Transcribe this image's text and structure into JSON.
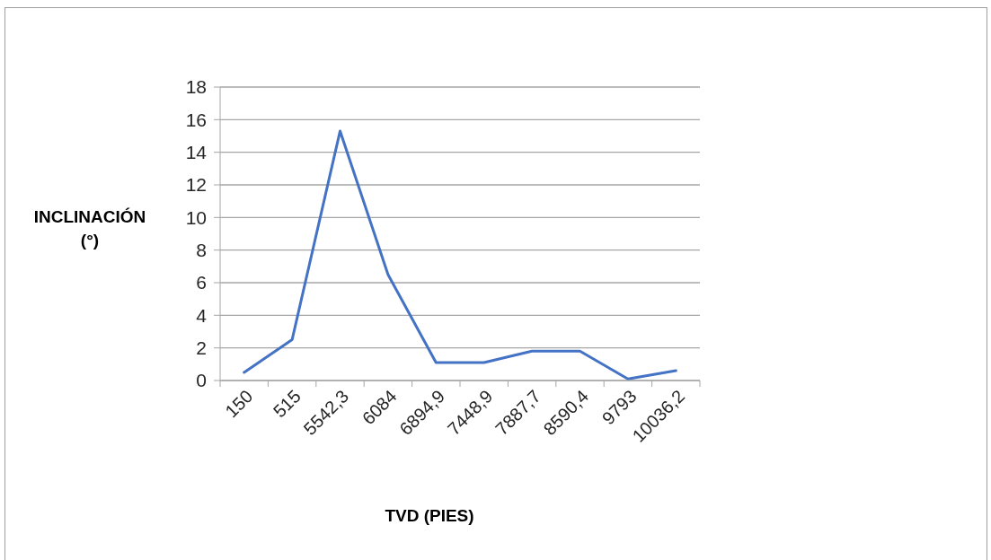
{
  "chart_data": {
    "type": "line",
    "xlabel": "TVD (PIES)",
    "ylabel": "INCLINACIÓN (°)",
    "categories": [
      "150",
      "515",
      "5542,3",
      "6084",
      "6894,9",
      "7448,9",
      "7887,7",
      "8590,4",
      "9793",
      "10036,2"
    ],
    "series": [
      {
        "color": "#4472c4",
        "values": [
          0.5,
          2.5,
          15.3,
          6.5,
          1.1,
          1.1,
          1.8,
          1.8,
          0.1,
          0.6
        ]
      }
    ],
    "ylim": [
      0,
      18
    ],
    "yticks": [
      0,
      2,
      4,
      6,
      8,
      10,
      12,
      14,
      16,
      18
    ],
    "grid": "y",
    "marker": "none",
    "line_style": "solid"
  }
}
